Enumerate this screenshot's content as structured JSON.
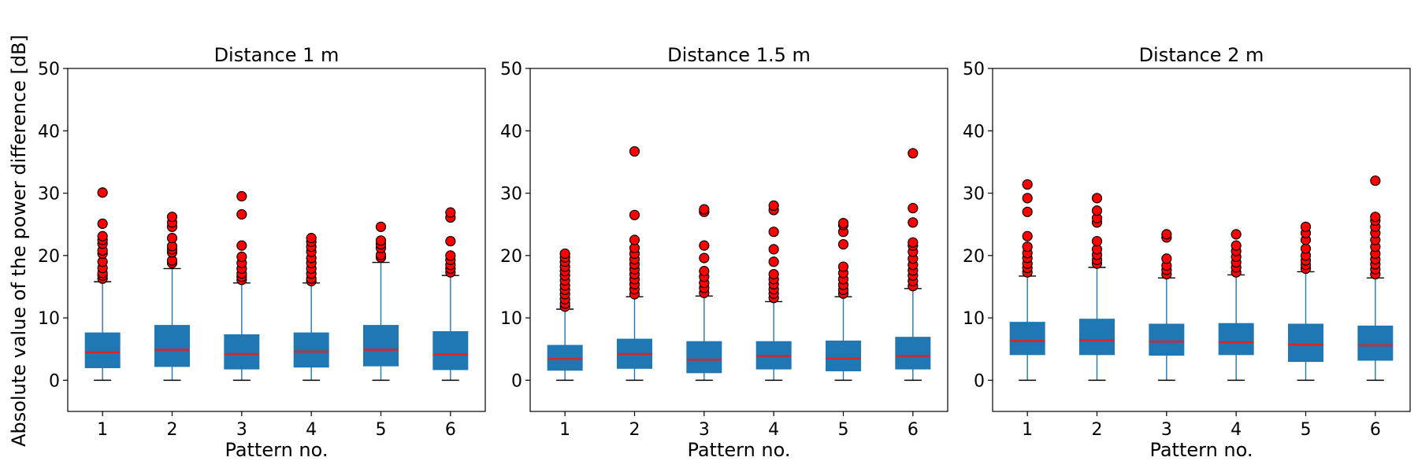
{
  "figure": {
    "ylabel": "Absolute value of the power difference [dB]"
  },
  "chart_data": [
    {
      "type": "box",
      "title": "Distance 1 m",
      "xlabel": "Pattern no.",
      "ylabel": "Absolute value of the power difference [dB]",
      "categories": [
        "1",
        "2",
        "3",
        "4",
        "5",
        "6"
      ],
      "ylim": [
        -5,
        50
      ],
      "yticks": [
        0,
        10,
        20,
        30,
        40,
        50
      ],
      "boxes": [
        {
          "q1": 2.0,
          "median": 4.5,
          "q3": 7.6,
          "whislo": 0.0,
          "whishi": 15.8,
          "fliers": [
            16.3,
            16.8,
            17.2,
            18.0,
            19.0,
            20.3,
            20.8,
            21.9,
            22.5,
            23.1,
            25.1,
            30.1
          ]
        },
        {
          "q1": 2.2,
          "median": 4.9,
          "q3": 8.8,
          "whislo": 0.0,
          "whishi": 17.9,
          "fliers": [
            18.8,
            19.2,
            20.5,
            21.0,
            21.5,
            22.8,
            24.6,
            25.3,
            26.2
          ]
        },
        {
          "q1": 1.8,
          "median": 4.2,
          "q3": 7.3,
          "whislo": 0.0,
          "whishi": 15.6,
          "fliers": [
            16.1,
            16.6,
            17.1,
            17.9,
            18.8,
            19.8,
            21.6,
            26.6,
            29.5
          ]
        },
        {
          "q1": 2.1,
          "median": 4.6,
          "q3": 7.6,
          "whislo": 0.0,
          "whishi": 15.6,
          "fliers": [
            15.9,
            16.3,
            17.1,
            17.9,
            18.8,
            19.6,
            20.6,
            21.4,
            22.2,
            22.8
          ]
        },
        {
          "q1": 2.3,
          "median": 4.9,
          "q3": 8.8,
          "whislo": 0.0,
          "whishi": 18.9,
          "fliers": [
            19.7,
            20.1,
            21.2,
            21.8,
            22.4,
            24.6
          ]
        },
        {
          "q1": 1.7,
          "median": 4.1,
          "q3": 7.8,
          "whislo": 0.0,
          "whishi": 16.8,
          "fliers": [
            17.3,
            17.9,
            18.5,
            19.3,
            20.0,
            22.3,
            26.1,
            26.9
          ]
        }
      ]
    },
    {
      "type": "box",
      "title": "Distance 1.5 m",
      "xlabel": "Pattern no.",
      "ylabel": "",
      "categories": [
        "1",
        "2",
        "3",
        "4",
        "5",
        "6"
      ],
      "ylim": [
        -5,
        50
      ],
      "yticks": [
        0,
        10,
        20,
        30,
        40,
        50
      ],
      "boxes": [
        {
          "q1": 1.6,
          "median": 3.4,
          "q3": 5.6,
          "whislo": 0.0,
          "whishi": 11.4,
          "fliers": [
            11.8,
            12.3,
            13.0,
            13.8,
            14.5,
            15.2,
            16.0,
            16.8,
            17.5,
            18.2,
            19.0,
            19.7,
            20.3
          ]
        },
        {
          "q1": 1.9,
          "median": 4.2,
          "q3": 6.6,
          "whislo": 0.0,
          "whishi": 13.4,
          "fliers": [
            13.8,
            14.6,
            15.4,
            16.2,
            17.0,
            17.8,
            18.6,
            19.4,
            20.3,
            21.2,
            22.5,
            26.5,
            36.7
          ]
        },
        {
          "q1": 1.2,
          "median": 3.3,
          "q3": 6.2,
          "whislo": 0.0,
          "whishi": 13.5,
          "fliers": [
            14.0,
            14.8,
            15.6,
            16.6,
            17.5,
            19.6,
            21.6,
            27.0,
            27.4
          ]
        },
        {
          "q1": 1.8,
          "median": 3.9,
          "q3": 6.2,
          "whislo": 0.0,
          "whishi": 12.6,
          "fliers": [
            13.2,
            13.9,
            14.6,
            15.4,
            16.2,
            17.0,
            19.0,
            21.0,
            23.8,
            27.3,
            28.0
          ]
        },
        {
          "q1": 1.5,
          "median": 3.5,
          "q3": 6.3,
          "whislo": 0.0,
          "whishi": 13.4,
          "fliers": [
            13.9,
            14.5,
            15.3,
            16.2,
            17.2,
            18.2,
            21.8,
            23.8,
            24.9,
            25.2
          ]
        },
        {
          "q1": 1.8,
          "median": 3.9,
          "q3": 6.9,
          "whislo": 0.0,
          "whishi": 14.7,
          "fliers": [
            15.1,
            15.9,
            16.8,
            17.6,
            18.5,
            19.5,
            20.6,
            21.6,
            22.1,
            25.3,
            27.6,
            36.4
          ]
        }
      ]
    },
    {
      "type": "box",
      "title": "Distance 2 m",
      "xlabel": "Pattern no.",
      "ylabel": "",
      "categories": [
        "1",
        "2",
        "3",
        "4",
        "5",
        "6"
      ],
      "ylim": [
        -5,
        50
      ],
      "yticks": [
        0,
        10,
        20,
        30,
        40,
        50
      ],
      "boxes": [
        {
          "q1": 4.1,
          "median": 6.3,
          "q3": 9.3,
          "whislo": 0.0,
          "whishi": 16.7,
          "fliers": [
            17.3,
            18.0,
            18.7,
            19.6,
            20.4,
            21.4,
            23.1,
            27.0,
            29.2,
            31.4
          ]
        },
        {
          "q1": 4.1,
          "median": 6.4,
          "q3": 9.8,
          "whislo": 0.0,
          "whishi": 18.1,
          "fliers": [
            18.7,
            19.3,
            20.1,
            21.0,
            22.3,
            25.3,
            26.0,
            27.2,
            29.2
          ]
        },
        {
          "q1": 4.0,
          "median": 6.2,
          "q3": 9.0,
          "whislo": 0.0,
          "whishi": 16.4,
          "fliers": [
            17.0,
            17.7,
            18.4,
            19.5,
            22.9,
            23.4
          ]
        },
        {
          "q1": 4.1,
          "median": 6.1,
          "q3": 9.1,
          "whislo": 0.0,
          "whishi": 16.9,
          "fliers": [
            17.3,
            18.1,
            18.9,
            19.8,
            20.7,
            21.6,
            23.4
          ]
        },
        {
          "q1": 3.0,
          "median": 5.7,
          "q3": 9.0,
          "whislo": 0.0,
          "whishi": 17.4,
          "fliers": [
            17.9,
            18.5,
            19.2,
            20.0,
            21.1,
            22.5,
            23.6,
            24.6
          ]
        },
        {
          "q1": 3.2,
          "median": 5.6,
          "q3": 8.7,
          "whislo": 0.0,
          "whishi": 16.4,
          "fliers": [
            17.0,
            17.8,
            18.6,
            19.4,
            20.3,
            21.4,
            22.5,
            23.6,
            24.6,
            25.6,
            26.2,
            32.0
          ]
        }
      ]
    }
  ],
  "colors": {
    "box_fill": "#1f77b4",
    "whisker": "#1f77b4",
    "cap": "#000000",
    "median": "#d62728",
    "flier_fill": "#ff0000",
    "flier_edge": "#000000",
    "axes": "#000000"
  }
}
